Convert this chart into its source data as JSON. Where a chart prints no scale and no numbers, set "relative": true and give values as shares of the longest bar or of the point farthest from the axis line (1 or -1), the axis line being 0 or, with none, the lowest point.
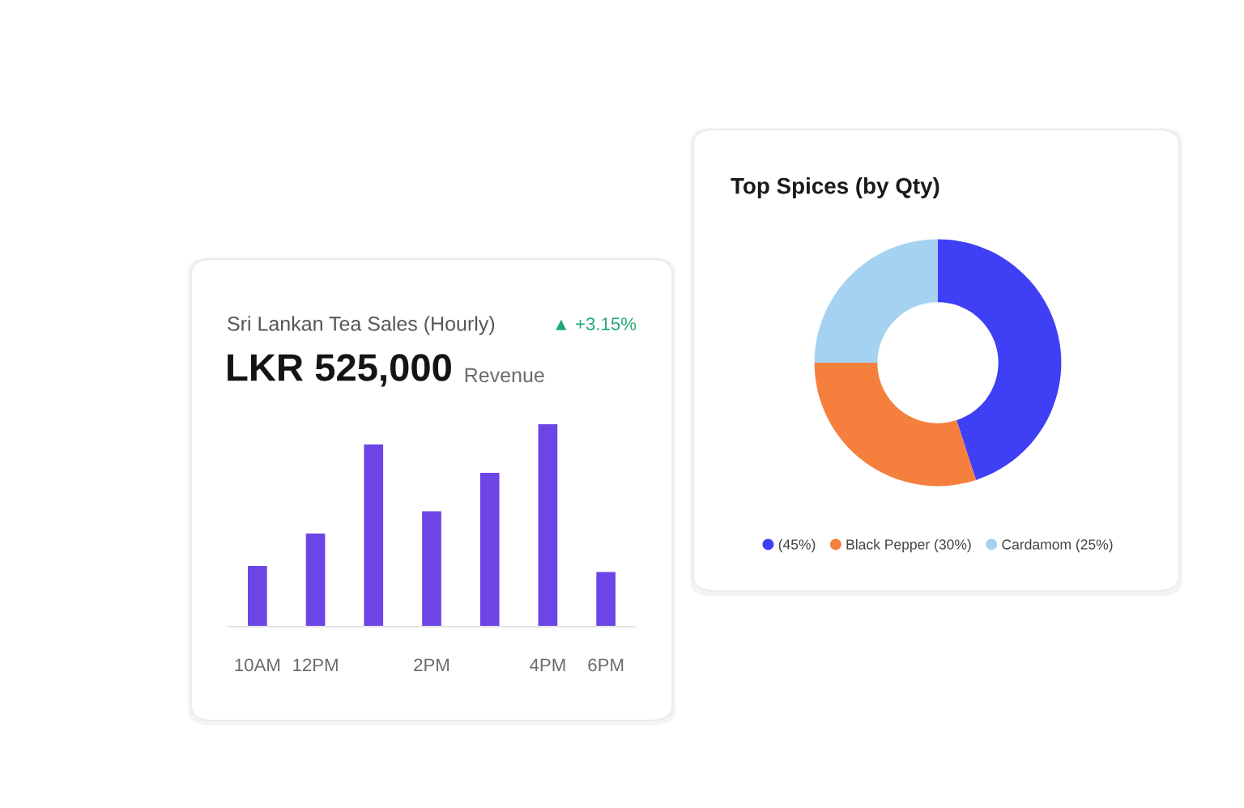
{
  "chart_data": [
    {
      "type": "bar",
      "title": "Sri Lankan Tea Sales (Hourly)",
      "subtitle": "LKR 525,000",
      "annotations": [
        "Revenue",
        "▲ +3.15%"
      ],
      "categories": [
        "10AM",
        "12PM",
        null,
        "2PM",
        null,
        "4PM",
        "6PM"
      ],
      "values": [
        0.3,
        0.46,
        0.9,
        0.57,
        0.76,
        1.0,
        0.27
      ],
      "relative": true,
      "color": "#6d45e6"
    },
    {
      "type": "donut",
      "title": "Top Spices (by Qty)",
      "categories": [
        "(45%)",
        "Black Pepper (30%)",
        "Cardamom (25%)"
      ],
      "values": [
        45,
        30,
        25
      ],
      "colors": [
        "#3f3ff5",
        "#f5803e",
        "#a6d2f2"
      ],
      "legend": "bottom"
    }
  ]
}
